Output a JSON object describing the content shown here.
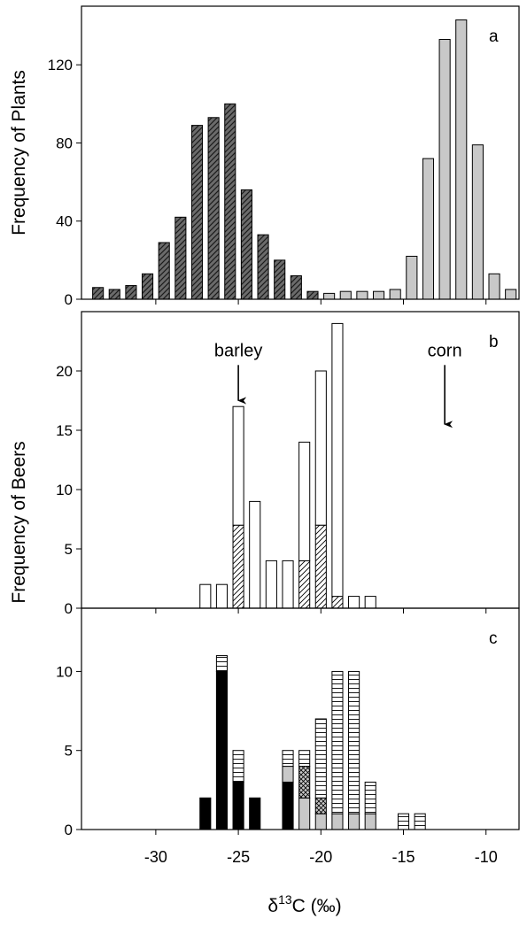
{
  "figure": {
    "xlabel_main": "δ",
    "xlabel_sup": "13",
    "xlabel_rest": "C (‰)",
    "x_ticks": [
      -30,
      -25,
      -20,
      -15,
      -10
    ],
    "xlim": [
      -34.5,
      -8
    ]
  },
  "chart_data": [
    {
      "type": "bar",
      "panel": "a",
      "ylabel": "Frequency of Plants",
      "ylim": [
        0,
        150
      ],
      "y_ticks": [
        0,
        40,
        80,
        120
      ],
      "bar_width": 0.65,
      "series": [
        {
          "name": "",
          "color": "#6b6b6b",
          "pattern": "diagonal-hatch",
          "x": [
            -33.5,
            -32.5,
            -31.5,
            -30.5,
            -29.5,
            -28.5,
            -27.5,
            -26.5,
            -25.5,
            -24.5,
            -23.5,
            -22.5,
            -21.5,
            -20.5
          ],
          "values": [
            6,
            5,
            7,
            13,
            29,
            42,
            89,
            93,
            100,
            56,
            33,
            20,
            12,
            4
          ]
        },
        {
          "name": "",
          "color": "#c8c8c8",
          "pattern": "solid",
          "x": [
            -19.5,
            -18.5,
            -17.5,
            -16.5,
            -15.5,
            -14.5,
            -13.5,
            -12.5,
            -11.5,
            -10.5,
            -9.5,
            -8.5
          ],
          "values": [
            3,
            4,
            4,
            4,
            5,
            22,
            72,
            133,
            143,
            79,
            13,
            5
          ]
        }
      ],
      "annotations": [
        {
          "text": "a"
        }
      ]
    },
    {
      "type": "bar",
      "panel": "b",
      "ylabel": "Frequency of Beers",
      "ylim": [
        0,
        25
      ],
      "y_ticks": [
        0,
        5,
        10,
        15,
        20
      ],
      "bar_width": 0.65,
      "stacked": true,
      "x": [
        -27,
        -26,
        -25,
        -24,
        -23,
        -22,
        -21,
        -20,
        -19,
        -18,
        -17
      ],
      "series": [
        {
          "name": "",
          "pattern": "diagonal-hatch",
          "values": [
            0,
            0,
            7,
            0,
            0,
            0,
            4,
            7,
            1,
            0,
            0
          ]
        },
        {
          "name": "",
          "pattern": "open",
          "values": [
            2,
            2,
            10,
            9,
            4,
            4,
            10,
            13,
            23,
            1,
            1
          ]
        }
      ],
      "annotations": [
        {
          "text": "b"
        },
        {
          "text": "barley",
          "arrow_x": -25,
          "arrow_from": 20.5,
          "arrow_to": 17.5
        },
        {
          "text": "corn",
          "arrow_x": -12.5,
          "arrow_from": 20.5,
          "arrow_to": 15.5
        }
      ]
    },
    {
      "type": "bar",
      "panel": "c",
      "ylabel": "",
      "ylim": [
        0,
        14
      ],
      "y_ticks": [
        0,
        5,
        10
      ],
      "bar_width": 0.65,
      "stacked": true,
      "x": [
        -27,
        -26,
        -25,
        -24,
        -22,
        -21,
        -20,
        -19,
        -18,
        -17,
        -15,
        -14
      ],
      "series": [
        {
          "name": "",
          "pattern": "black",
          "values": [
            2,
            10,
            3,
            2,
            3,
            0,
            0,
            0,
            0,
            0,
            0,
            0
          ]
        },
        {
          "name": "",
          "pattern": "gray",
          "values": [
            0,
            0,
            0,
            0,
            1,
            2,
            1,
            1,
            1,
            1,
            0,
            0
          ]
        },
        {
          "name": "",
          "pattern": "cross-hatch",
          "values": [
            0,
            0,
            0,
            0,
            0,
            2,
            1,
            0,
            0,
            0,
            0,
            0
          ]
        },
        {
          "name": "",
          "pattern": "horizontal-lines",
          "values": [
            0,
            1,
            2,
            0,
            1,
            1,
            5,
            9,
            9,
            2,
            1,
            1
          ]
        }
      ],
      "annotations": [
        {
          "text": "c"
        }
      ]
    }
  ]
}
